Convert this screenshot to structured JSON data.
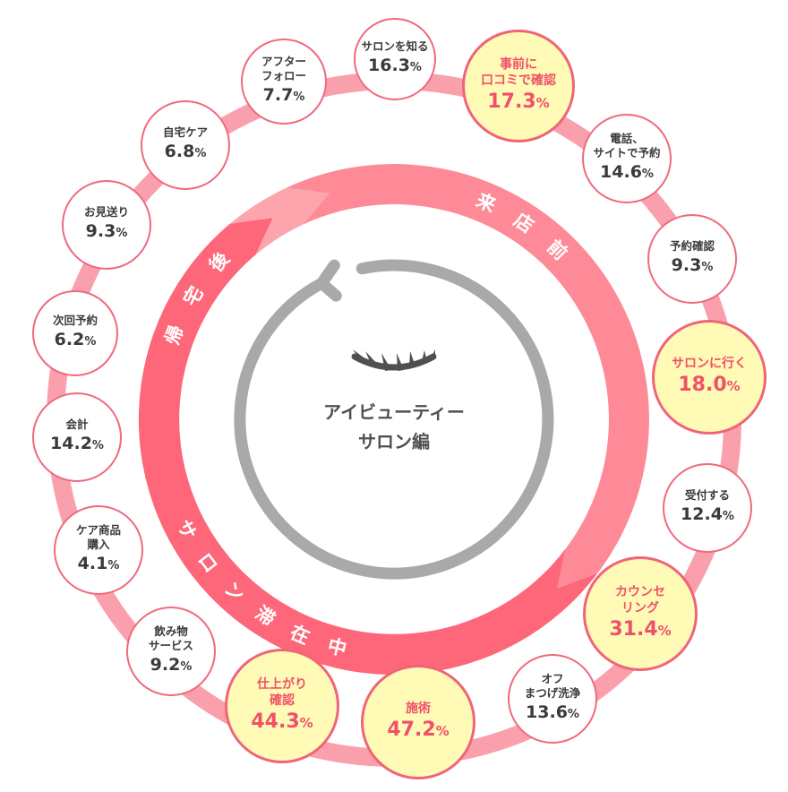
{
  "center": {
    "title_line1": "アイビューティー",
    "title_line2": "サロン編"
  },
  "phases": {
    "before": "来店前",
    "during": "サロン滞在中",
    "after": "帰宅後"
  },
  "colors": {
    "ring": "#f9a0ac",
    "border": "#ef6a7d",
    "highlight_fill": "#fffab5",
    "highlight_text": "#f0506a",
    "before_band": "#fe8a97",
    "during_band": "#fd6779",
    "after_band": "#fca5ad",
    "arrow": "#a9a9a9",
    "icon": "#505050"
  },
  "icons": {
    "center": "closed-eye-lashes-icon",
    "arrow": "circular-arrow-icon"
  },
  "steps": [
    {
      "label": "サロンを知る",
      "value": "16.3",
      "unit": "%",
      "highlight": false
    },
    {
      "label": "事前に\n口コミで確認",
      "value": "17.3",
      "unit": "%",
      "highlight": true
    },
    {
      "label": "電話、\nサイトで予約",
      "value": "14.6",
      "unit": "%",
      "highlight": false
    },
    {
      "label": "予約確認",
      "value": "9.3",
      "unit": "%",
      "highlight": false
    },
    {
      "label": "サロンに行く",
      "value": "18.0",
      "unit": "%",
      "highlight": true
    },
    {
      "label": "受付する",
      "value": "12.4",
      "unit": "%",
      "highlight": false
    },
    {
      "label": "カウンセ\nリング",
      "value": "31.4",
      "unit": "%",
      "highlight": true
    },
    {
      "label": "オフ\nまつげ洗浄",
      "value": "13.6",
      "unit": "%",
      "highlight": false
    },
    {
      "label": "施術",
      "value": "47.2",
      "unit": "%",
      "highlight": true
    },
    {
      "label": "仕上がり\n確認",
      "value": "44.3",
      "unit": "%",
      "highlight": true
    },
    {
      "label": "飲み物\nサービス",
      "value": "9.2",
      "unit": "%",
      "highlight": false
    },
    {
      "label": "ケア商品\n購入",
      "value": "4.1",
      "unit": "%",
      "highlight": false
    },
    {
      "label": "会計",
      "value": "14.2",
      "unit": "%",
      "highlight": false
    },
    {
      "label": "次回予約",
      "value": "6.2",
      "unit": "%",
      "highlight": false
    },
    {
      "label": "お見送り",
      "value": "9.3",
      "unit": "%",
      "highlight": false
    },
    {
      "label": "自宅ケア",
      "value": "6.8",
      "unit": "%",
      "highlight": false
    },
    {
      "label": "アフター\nフォロー",
      "value": "7.7",
      "unit": "%",
      "highlight": false
    }
  ]
}
